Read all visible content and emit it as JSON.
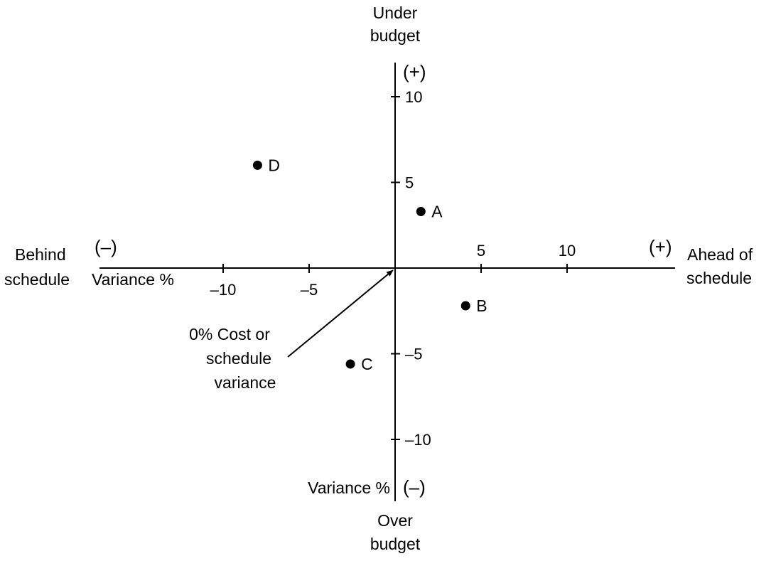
{
  "chart_data": {
    "type": "scatter",
    "x_axis": {
      "label_left": [
        "Behind",
        "schedule"
      ],
      "label_right": [
        "Ahead of",
        "schedule"
      ],
      "variance_label": "Variance %",
      "sign_negative": "(–)",
      "sign_positive": "(+)",
      "range": [
        -10,
        10
      ],
      "tick_values": [
        -10,
        -5,
        5,
        10
      ],
      "tick_labels": [
        "–10",
        "–5",
        "5",
        "10"
      ]
    },
    "y_axis": {
      "label_top": [
        "Under",
        "budget"
      ],
      "label_bottom": [
        "Over",
        "budget"
      ],
      "variance_label": "Variance %",
      "sign_positive": "(+)",
      "sign_negative": "(–)",
      "range": [
        -10,
        10
      ],
      "tick_values": [
        10,
        5,
        -5,
        -10
      ],
      "tick_labels": [
        "10",
        "5",
        "–5",
        "–10"
      ]
    },
    "points": [
      {
        "label": "A",
        "x": 1.5,
        "y": 3.3
      },
      {
        "label": "B",
        "x": 4.1,
        "y": -2.2
      },
      {
        "label": "C",
        "x": -2.6,
        "y": -5.6
      },
      {
        "label": "D",
        "x": -8.0,
        "y": 6.0
      }
    ],
    "annotation": {
      "lines": [
        "0% Cost or",
        "schedule",
        "variance"
      ],
      "points_to": [
        0,
        0
      ]
    },
    "grid": false,
    "legend": "none"
  }
}
